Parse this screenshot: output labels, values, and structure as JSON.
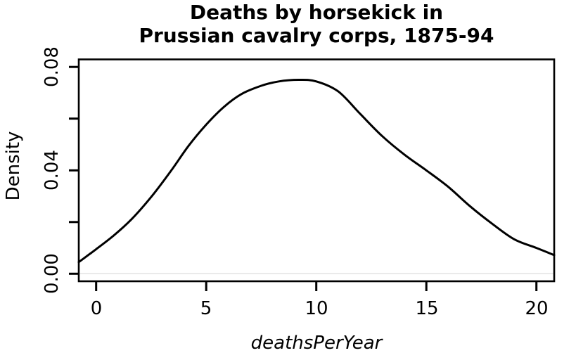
{
  "title": {
    "line1": "Deaths by horsekick in",
    "line2": "Prussian cavalry corps, 1875-94"
  },
  "chart_data": {
    "type": "line",
    "title": "Deaths by horsekick in Prussian cavalry corps, 1875-94",
    "xlabel": "deathsPerYear",
    "ylabel": "Density",
    "x_ticks": {
      "values": [
        0,
        5,
        10,
        15,
        20
      ],
      "labels": [
        "0",
        "5",
        "10",
        "15",
        "20"
      ]
    },
    "y_ticks": {
      "values": [
        0,
        0.02,
        0.04,
        0.06,
        0.08
      ],
      "labels": [
        "0.00",
        "",
        "0.04",
        "",
        "0.08"
      ]
    },
    "xlim": [
      -0.79,
      20.81
    ],
    "ylim": [
      -0.0029,
      0.0829
    ],
    "grid": false,
    "legend": null,
    "curve_color": "#000000",
    "box_color": "#000000",
    "zero_line_color": "#e3e3e3",
    "series": [
      {
        "name": "density",
        "x": [
          -0.79,
          0,
          0.8,
          1.6,
          2.5,
          3.4,
          4.2,
          5,
          5.8,
          6.6,
          7.5,
          8.3,
          9.2,
          10,
          11,
          12,
          13,
          14,
          15,
          16,
          17,
          18,
          19,
          20,
          20.81
        ],
        "y": [
          0.0045,
          0.0095,
          0.0148,
          0.021,
          0.0297,
          0.0398,
          0.0495,
          0.0577,
          0.0645,
          0.0695,
          0.0727,
          0.0744,
          0.075,
          0.0744,
          0.0705,
          0.0618,
          0.0532,
          0.0461,
          0.04,
          0.0336,
          0.026,
          0.0193,
          0.0133,
          0.01,
          0.0072
        ]
      }
    ]
  }
}
